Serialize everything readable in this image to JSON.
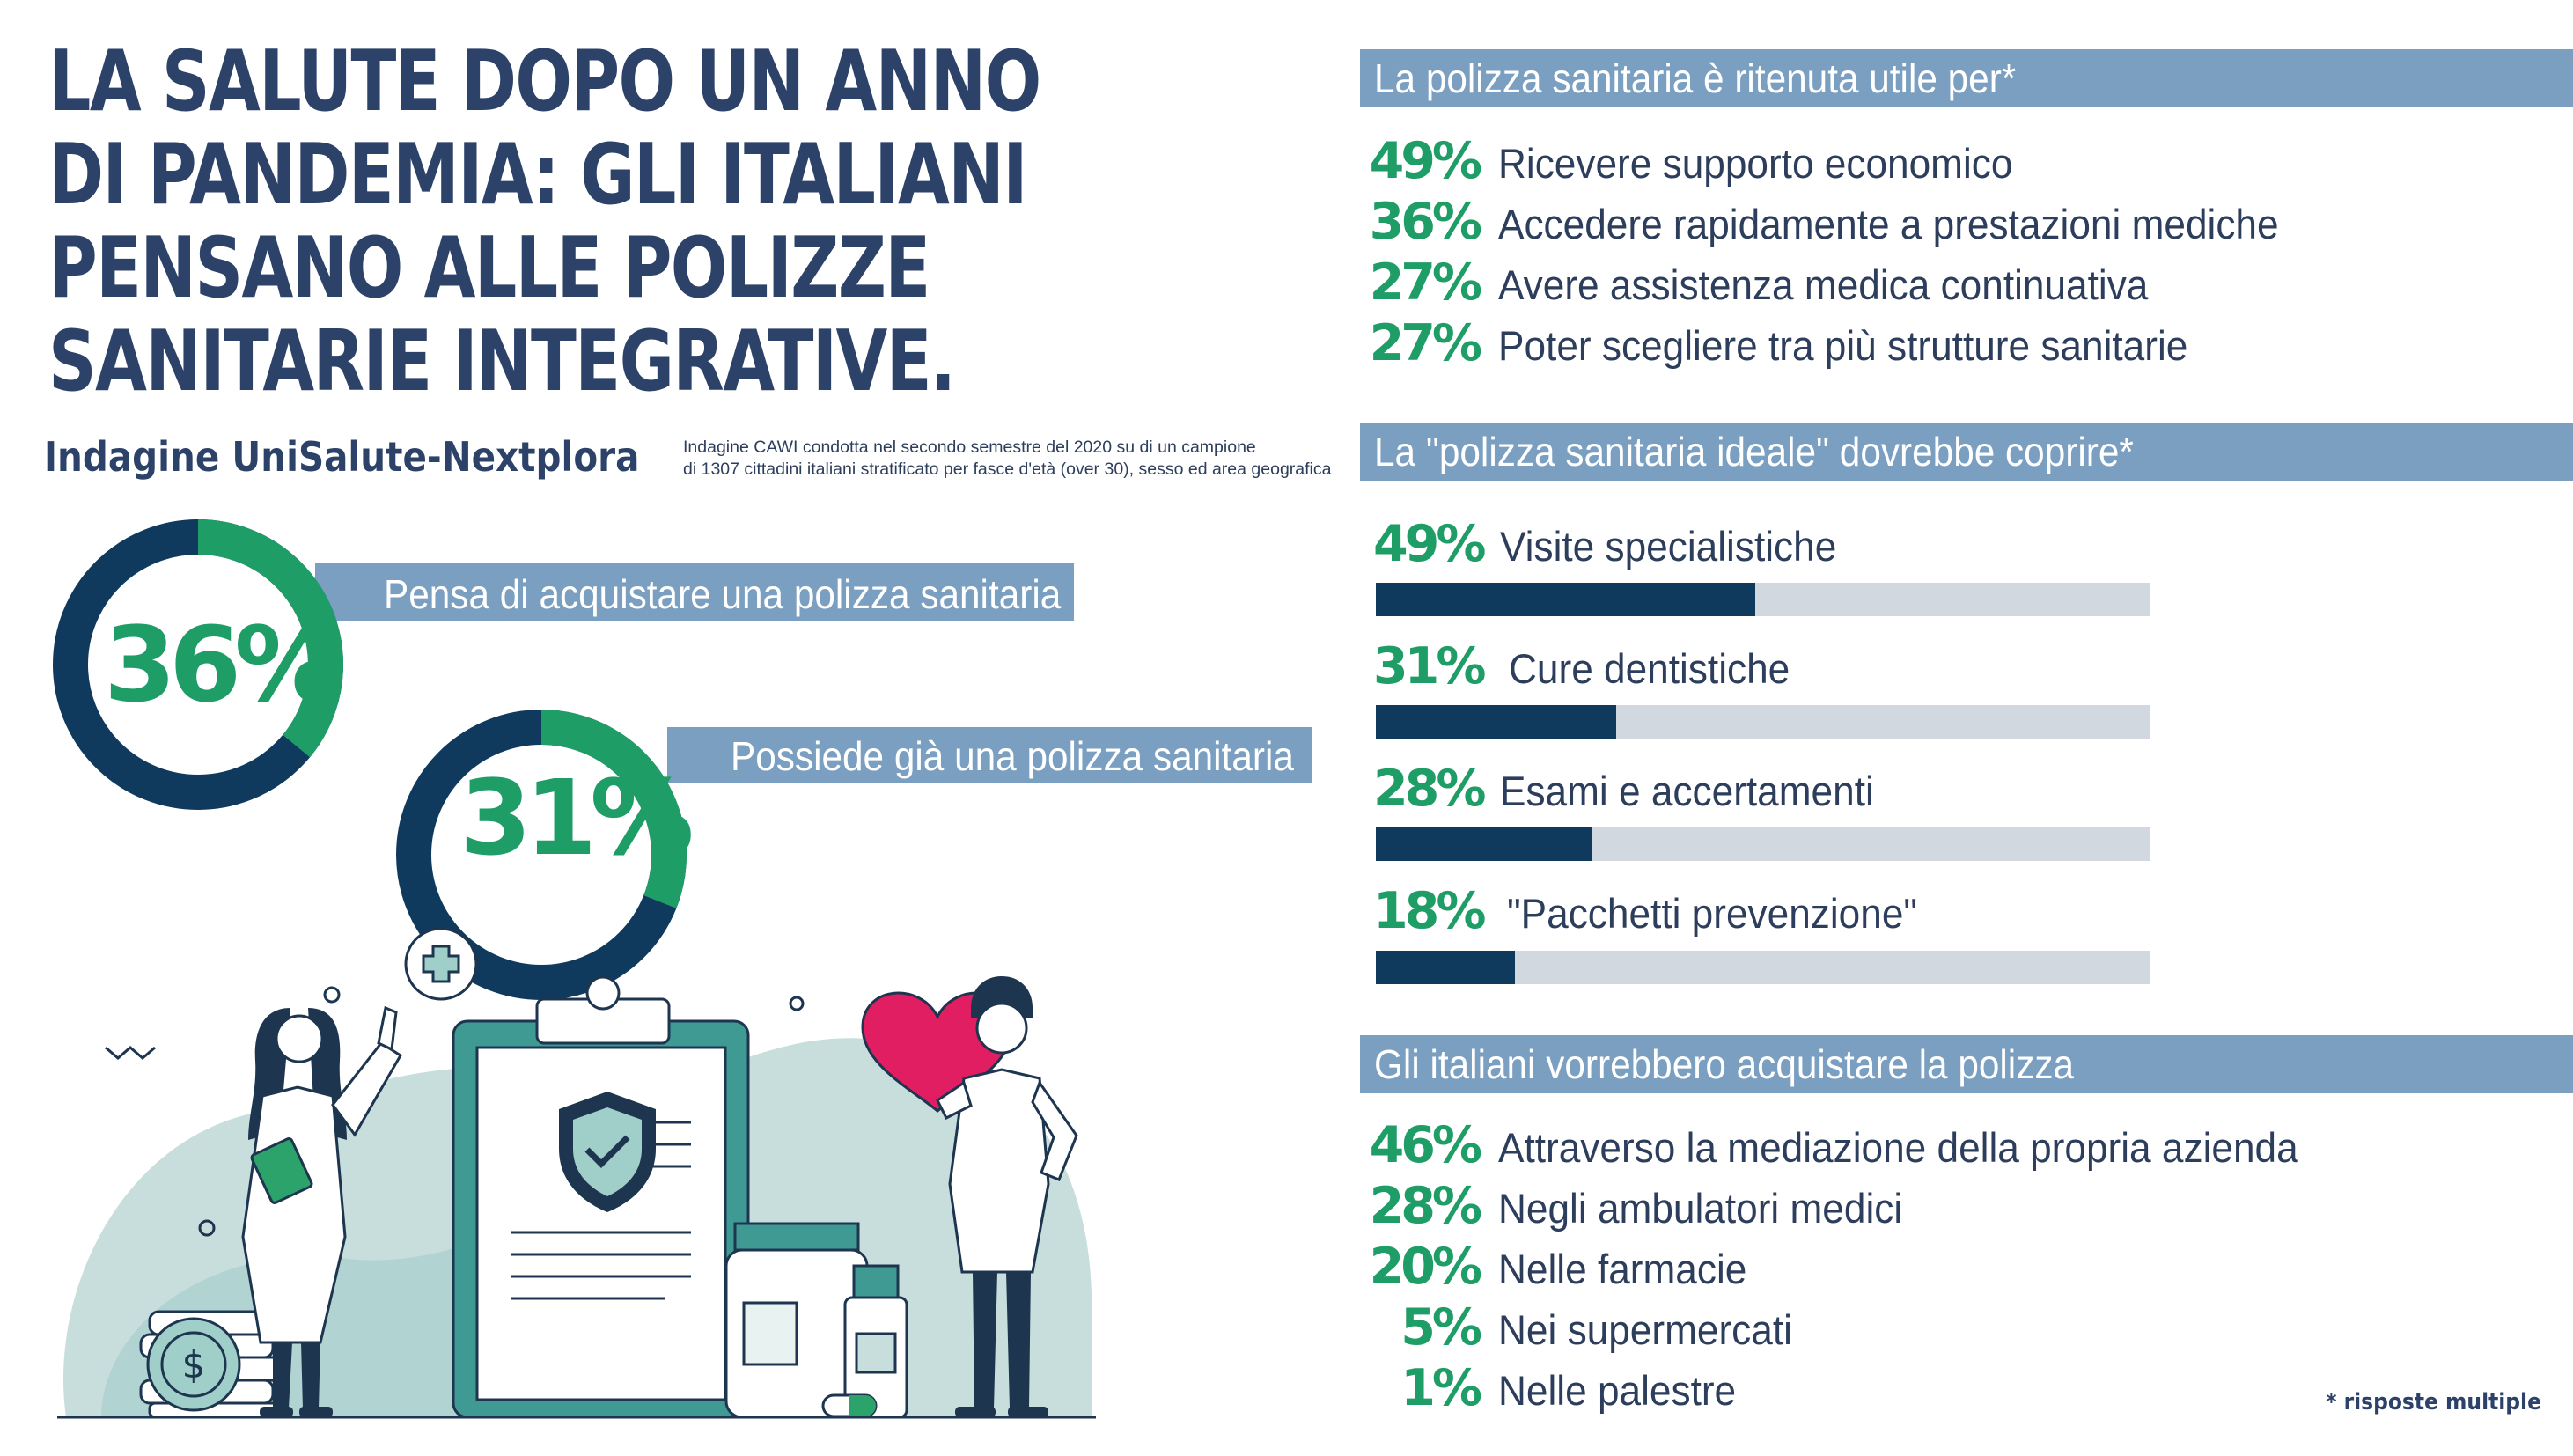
{
  "title_lines": [
    "LA SALUTE DOPO UN ANNO",
    "DI PANDEMIA: GLI ITALIANI",
    "PENSANO ALLE POLIZZE",
    "SANITARIE INTEGRATIVE."
  ],
  "subtitle": "Indagine UniSalute-Nextplora",
  "survey_note_lines": [
    "Indagine CAWI condotta nel secondo semestre del 2020 su di un campione",
    "di 1307 cittadini italiani stratificato per fasce d'età (over 30), sesso ed area geografica"
  ],
  "colors": {
    "navy": "#0f3a5e",
    "green": "#1f9d66",
    "band": "#7a9fc1",
    "title": "#2d4269",
    "bar_track": "#d1d8df"
  },
  "donuts": [
    {
      "value": 36,
      "label": "36%",
      "caption": "Pensa di acquistare una polizza sanitaria"
    },
    {
      "value": 31,
      "label": "31%",
      "caption": "Possiede già una polizza  sanitaria"
    }
  ],
  "section1": {
    "header": "La polizza sanitaria è ritenuta utile per*",
    "items": [
      {
        "pct": "49%",
        "label": "Ricevere supporto economico"
      },
      {
        "pct": "36%",
        "label": "Accedere rapidamente a prestazioni mediche"
      },
      {
        "pct": "27%",
        "label": "Avere assistenza medica continuativa"
      },
      {
        "pct": "27%",
        "label": "Poter scegliere tra più strutture sanitarie"
      }
    ]
  },
  "section2": {
    "header": "La \"polizza sanitaria ideale\" dovrebbe coprire*",
    "items": [
      {
        "value": 49,
        "pct": "49%",
        "label": "Visite specialistiche"
      },
      {
        "value": 31,
        "pct": "31%",
        "label": "Cure dentistiche"
      },
      {
        "value": 28,
        "pct": "28%",
        "label": "Esami e accertamenti"
      },
      {
        "value": 18,
        "pct": "18%",
        "label": "\"Pacchetti prevenzione\""
      }
    ]
  },
  "section3": {
    "header": "Gli italiani vorrebbero acquistare la polizza",
    "items": [
      {
        "pct": "46%",
        "label": "Attraverso la mediazione della propria azienda"
      },
      {
        "pct": "28%",
        "label": "Negli ambulatori medici"
      },
      {
        "pct": "20%",
        "label": "Nelle farmacie"
      },
      {
        "pct": "5%",
        "label": "Nei supermercati"
      },
      {
        "pct": "1%",
        "label": "Nelle palestre"
      }
    ]
  },
  "footnote": "* risposte multiple",
  "illustration_icons": [
    "doctor-woman-icon",
    "doctor-man-icon",
    "clipboard-icon",
    "shield-check-icon",
    "heart-icon",
    "medical-cross-icon",
    "pill-bottle-icon",
    "coin-stack-icon",
    "dollar-coin-icon",
    "capsule-icon"
  ]
}
